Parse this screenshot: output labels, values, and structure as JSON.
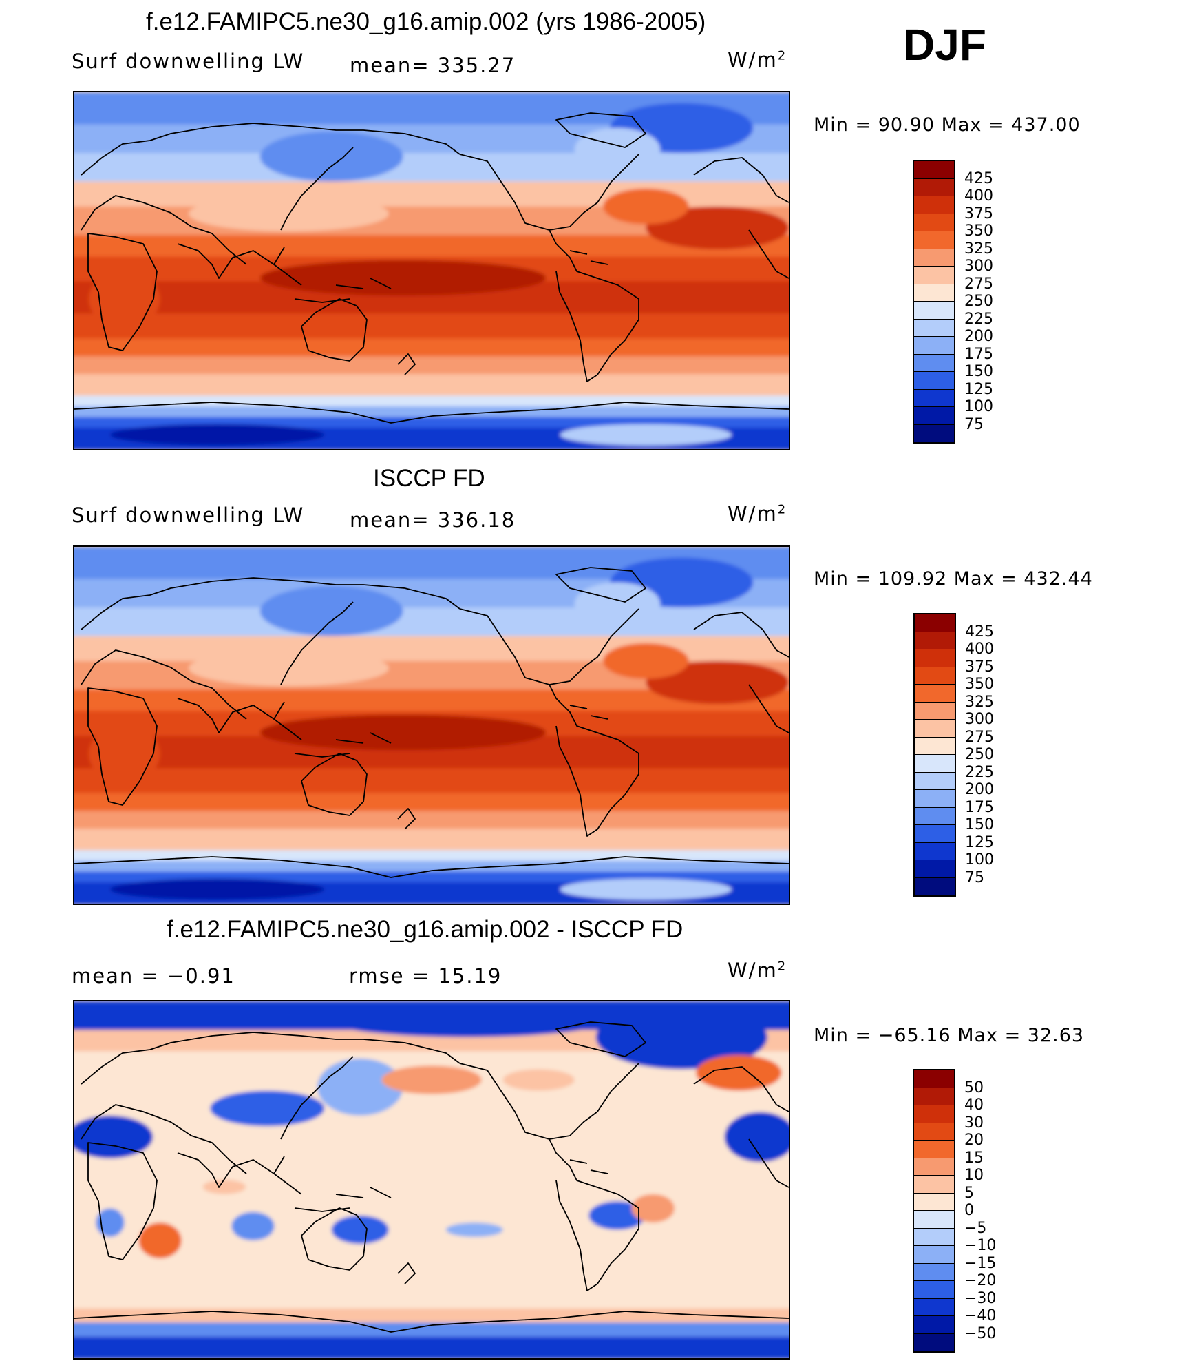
{
  "season": "DJF",
  "panels": [
    {
      "title": "f.e12.FAMIPC5.ne30_g16.amip.002 (yrs 1986-2005)",
      "left_label": "Surf downwelling LW",
      "center_label": "mean= 335.27",
      "units": "W/m²",
      "minmax": "Min =   90.90 Max = 437.00",
      "colorbar": {
        "levels": [
          "425",
          "400",
          "375",
          "350",
          "325",
          "300",
          "275",
          "250",
          "225",
          "200",
          "175",
          "150",
          "125",
          "100",
          "75"
        ],
        "colors": [
          "#8b0000",
          "#b11a06",
          "#cf300a",
          "#e24a14",
          "#f1682c",
          "#f79a70",
          "#fcc3a4",
          "#fde6d3",
          "#d8e6fb",
          "#b3cdfa",
          "#8cb0f6",
          "#5f8df0",
          "#2d5fe6",
          "#0f37cf",
          "#0019a7",
          "#000c7e"
        ]
      },
      "field": "sst"
    },
    {
      "title": "ISCCP FD",
      "left_label": "Surf downwelling LW",
      "center_label": "mean= 336.18",
      "units": "W/m²",
      "minmax": "Min = 109.92 Max = 432.44",
      "colorbar": {
        "levels": [
          "425",
          "400",
          "375",
          "350",
          "325",
          "300",
          "275",
          "250",
          "225",
          "200",
          "175",
          "150",
          "125",
          "100",
          "75"
        ],
        "colors": [
          "#8b0000",
          "#b11a06",
          "#cf300a",
          "#e24a14",
          "#f1682c",
          "#f79a70",
          "#fcc3a4",
          "#fde6d3",
          "#d8e6fb",
          "#b3cdfa",
          "#8cb0f6",
          "#5f8df0",
          "#2d5fe6",
          "#0f37cf",
          "#0019a7",
          "#000c7e"
        ]
      },
      "field": "sst"
    },
    {
      "title": "f.e12.FAMIPC5.ne30_g16.amip.002 - ISCCP FD",
      "left_label": "mean =   −0.91",
      "center_label": "rmse =   15.19",
      "units": "W/m²",
      "minmax": "Min = −65.16 Max =   32.63",
      "colorbar": {
        "levels": [
          "50",
          "40",
          "30",
          "20",
          "15",
          "10",
          "5",
          "0",
          "−5",
          "−10",
          "−15",
          "−20",
          "−30",
          "−40",
          "−50"
        ],
        "colors": [
          "#8b0000",
          "#b11a06",
          "#cf300a",
          "#e24a14",
          "#f1682c",
          "#f79a70",
          "#fcc3a4",
          "#fde6d3",
          "#d8e6fb",
          "#b3cdfa",
          "#8cb0f6",
          "#5f8df0",
          "#2d5fe6",
          "#0f37cf",
          "#0019a7",
          "#000c7e"
        ]
      },
      "field": "diff"
    }
  ]
}
